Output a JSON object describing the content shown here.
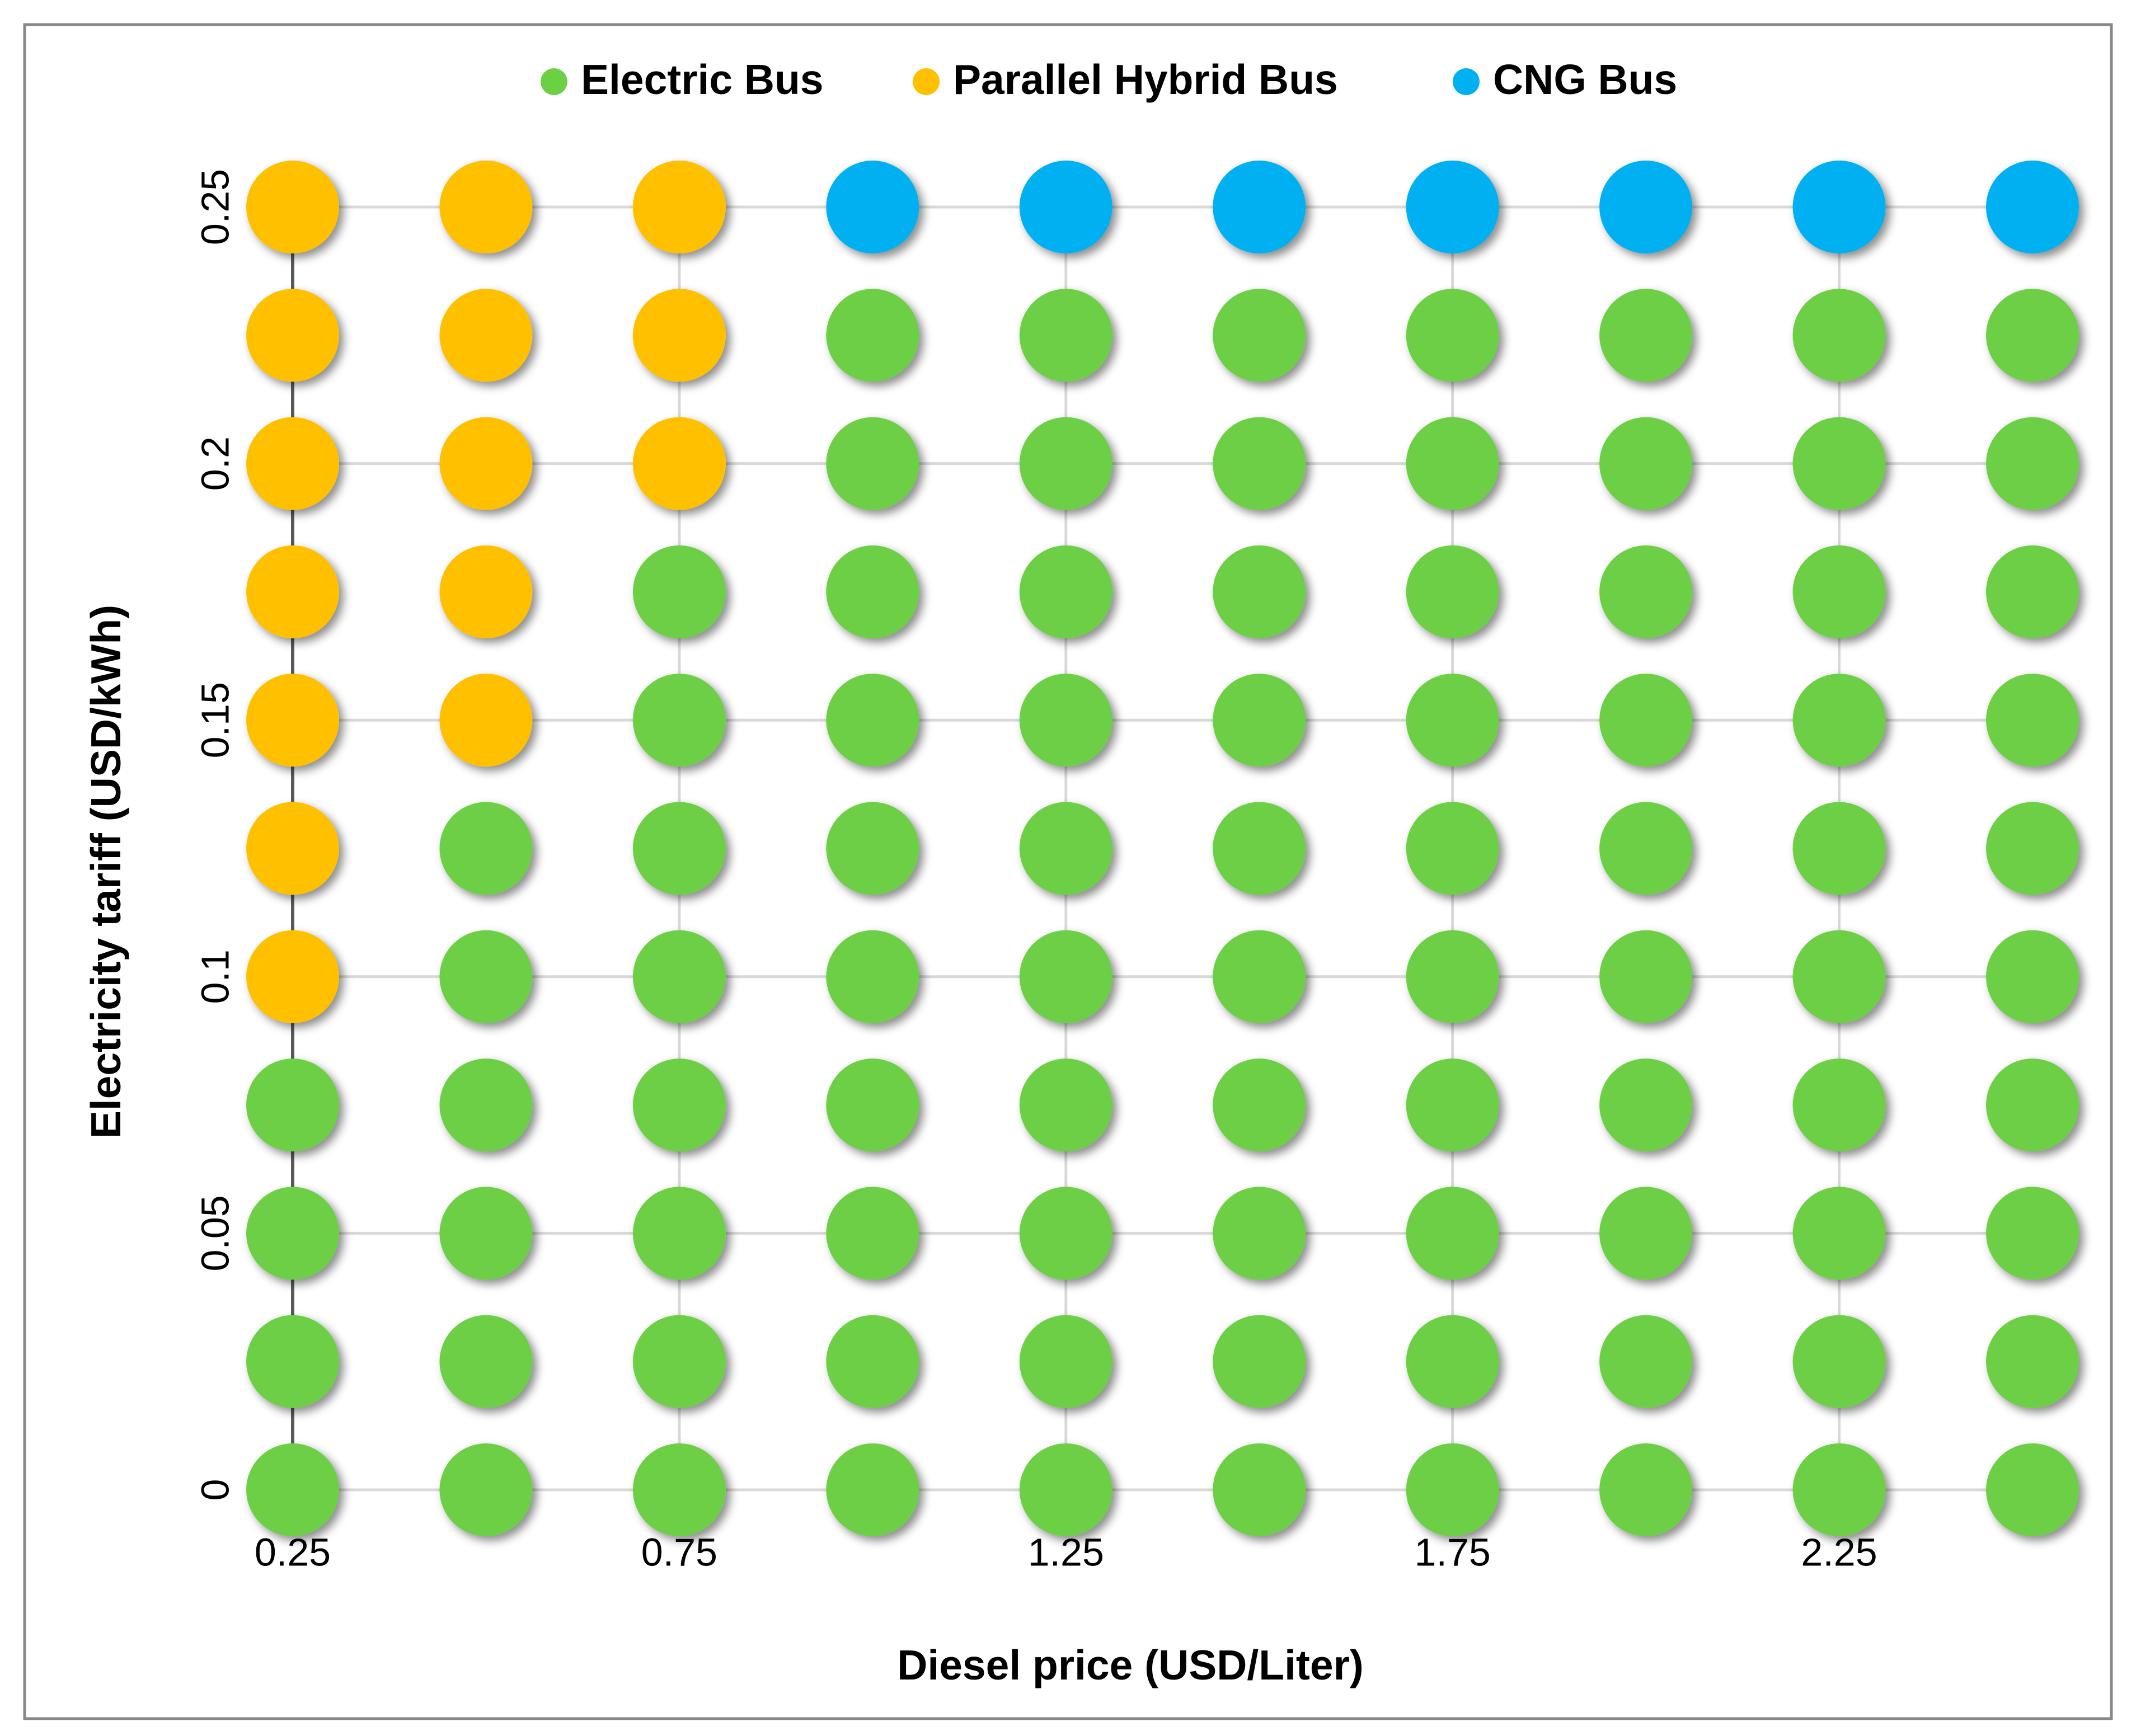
{
  "chart_data": {
    "type": "scatter",
    "xlabel": "Diesel price (USD/Liter)",
    "ylabel": "Electricity tariff (USD/kWh)",
    "xlim": [
      0.25,
      2.5
    ],
    "ylim": [
      0,
      0.25
    ],
    "xticks": [
      0.25,
      0.75,
      1.25,
      1.75,
      2.25
    ],
    "yticks": [
      0,
      0.05,
      0.1,
      0.15,
      0.2,
      0.25
    ],
    "grid": true,
    "legend": "top",
    "series": [
      {
        "name": "Electric Bus",
        "color": "#6dcf44",
        "x": [
          0.25,
          0.25,
          0.25,
          0.25,
          0.5,
          0.5,
          0.5,
          0.5,
          0.5,
          0.5,
          0.75,
          0.75,
          0.75,
          0.75,
          0.75,
          0.75,
          0.75,
          0.75,
          1,
          1,
          1,
          1,
          1,
          1,
          1,
          1,
          1,
          1,
          1.25,
          1.25,
          1.25,
          1.25,
          1.25,
          1.25,
          1.25,
          1.25,
          1.25,
          1.25,
          1.5,
          1.5,
          1.5,
          1.5,
          1.5,
          1.5,
          1.5,
          1.5,
          1.5,
          1.5,
          1.75,
          1.75,
          1.75,
          1.75,
          1.75,
          1.75,
          1.75,
          1.75,
          1.75,
          1.75,
          2,
          2,
          2,
          2,
          2,
          2,
          2,
          2,
          2,
          2,
          2.25,
          2.25,
          2.25,
          2.25,
          2.25,
          2.25,
          2.25,
          2.25,
          2.25,
          2.25,
          2.5,
          2.5,
          2.5,
          2.5,
          2.5,
          2.5,
          2.5,
          2.5,
          2.5,
          2.5
        ],
        "y": [
          0,
          0.025,
          0.05,
          0.075,
          0,
          0.025,
          0.05,
          0.075,
          0.1,
          0.125,
          0,
          0.025,
          0.05,
          0.075,
          0.1,
          0.125,
          0.15,
          0.175,
          0,
          0.025,
          0.05,
          0.075,
          0.1,
          0.125,
          0.15,
          0.175,
          0.2,
          0.225,
          0,
          0.025,
          0.05,
          0.075,
          0.1,
          0.125,
          0.15,
          0.175,
          0.2,
          0.225,
          0,
          0.025,
          0.05,
          0.075,
          0.1,
          0.125,
          0.15,
          0.175,
          0.2,
          0.225,
          0,
          0.025,
          0.05,
          0.075,
          0.1,
          0.125,
          0.15,
          0.175,
          0.2,
          0.225,
          0,
          0.025,
          0.05,
          0.075,
          0.1,
          0.125,
          0.15,
          0.175,
          0.2,
          0.225,
          0,
          0.025,
          0.05,
          0.075,
          0.1,
          0.125,
          0.15,
          0.175,
          0.2,
          0.225,
          0,
          0.025,
          0.05,
          0.075,
          0.1,
          0.125,
          0.15,
          0.175,
          0.2,
          0.225
        ]
      },
      {
        "name": "Parallel Hybrid Bus",
        "color": "#ffc000",
        "x": [
          0.25,
          0.25,
          0.25,
          0.25,
          0.25,
          0.25,
          0.25,
          0.5,
          0.5,
          0.5,
          0.5,
          0.5,
          0.75,
          0.75,
          0.75
        ],
        "y": [
          0.1,
          0.125,
          0.15,
          0.175,
          0.2,
          0.225,
          0.25,
          0.15,
          0.175,
          0.2,
          0.225,
          0.25,
          0.2,
          0.225,
          0.25
        ]
      },
      {
        "name": "CNG Bus",
        "color": "#00b0f0",
        "x": [
          1,
          1.25,
          1.5,
          1.75,
          2,
          2.25,
          2.5
        ],
        "y": [
          0.25,
          0.25,
          0.25,
          0.25,
          0.25,
          0.25,
          0.25
        ]
      }
    ]
  }
}
